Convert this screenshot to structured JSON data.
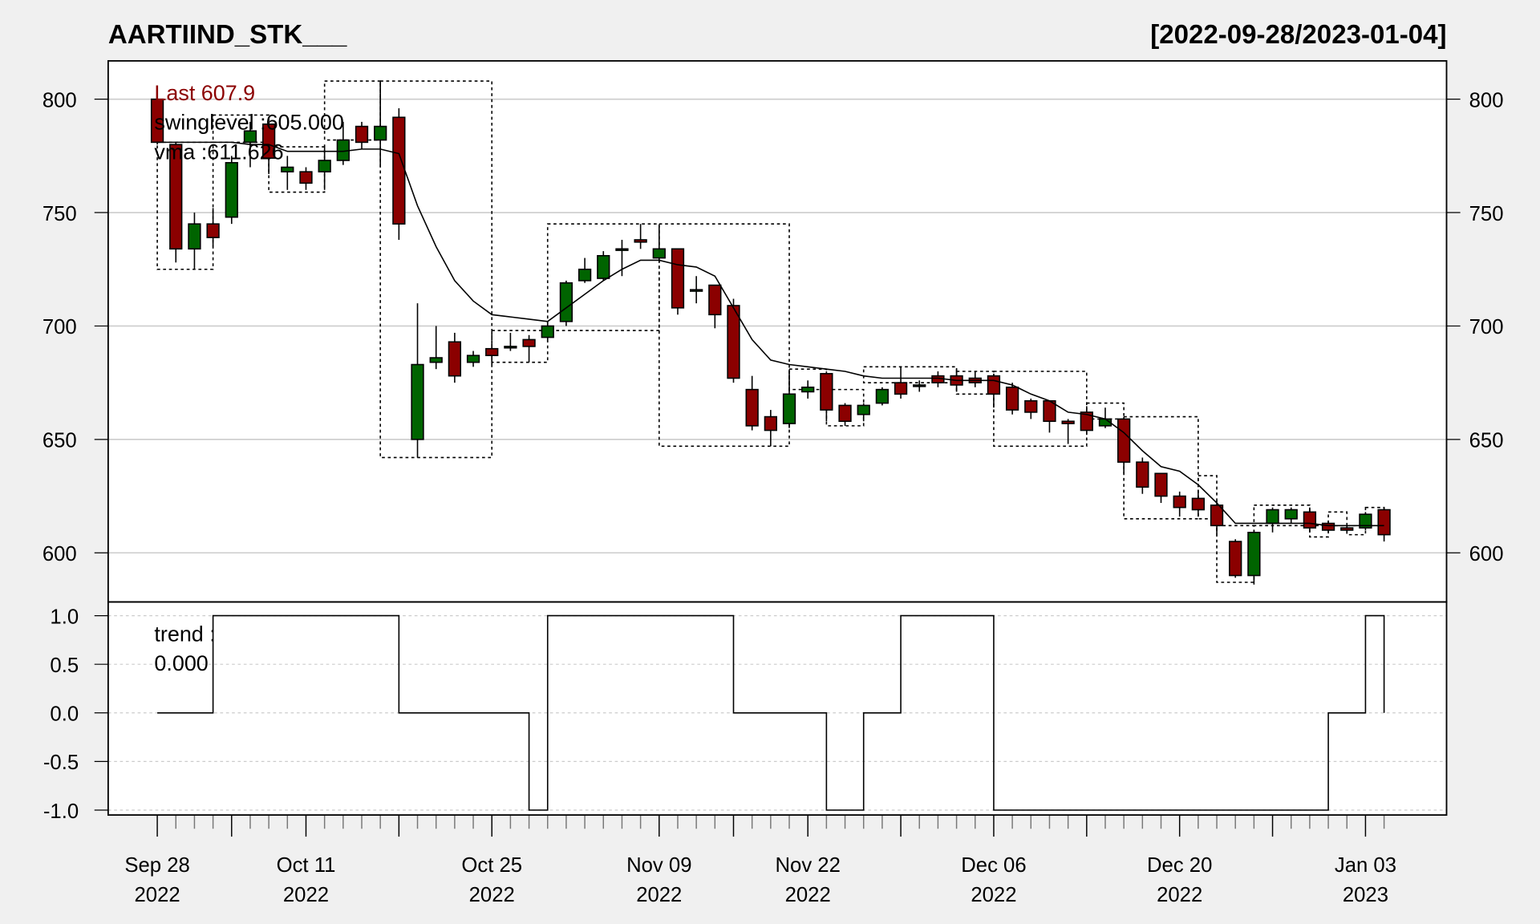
{
  "title": "AARTIIND_STK___",
  "date_range": "[2022-09-28/2023-01-04]",
  "legend": {
    "last": "Last 607.9",
    "swinglevel": "swinglevel :605.000",
    "vma": "vma :611.626",
    "trend_label": "trend :",
    "trend_value": "0.000"
  },
  "colors": {
    "up": "#006400",
    "down": "#8b0000",
    "last_text": "#8b0000",
    "grid": "#cccccc",
    "background": "#f0f0f0"
  },
  "chart_data": [
    {
      "type": "candlestick",
      "panel": "price",
      "ylim": [
        580,
        815
      ],
      "yticks": [
        "600",
        "650",
        "700",
        "750",
        "800"
      ],
      "grid": true,
      "ohlc": [
        [
          800,
          801,
          780,
          781
        ],
        [
          780,
          781,
          728,
          734
        ],
        [
          734,
          750,
          725,
          745
        ],
        [
          745,
          752,
          735,
          739
        ],
        [
          748,
          775,
          745,
          772
        ],
        [
          781,
          790,
          770,
          786
        ],
        [
          789,
          790,
          767,
          774
        ],
        [
          768,
          775,
          760,
          770
        ],
        [
          768,
          770,
          760,
          763
        ],
        [
          768,
          780,
          760,
          773
        ],
        [
          773,
          790,
          771,
          782
        ],
        [
          788,
          790,
          778,
          781
        ],
        [
          782,
          808,
          770,
          788
        ],
        [
          792,
          796,
          738,
          745
        ],
        [
          650,
          710,
          642,
          683
        ],
        [
          684,
          700,
          681,
          686
        ],
        [
          693,
          697,
          675,
          678
        ],
        [
          684,
          689,
          682,
          687
        ],
        [
          690,
          692,
          683,
          687
        ],
        [
          691,
          697,
          689,
          691
        ],
        [
          694,
          696,
          684,
          691
        ],
        [
          695,
          702,
          693,
          700
        ],
        [
          702,
          720,
          700,
          719
        ],
        [
          720,
          730,
          719,
          725
        ],
        [
          721,
          733,
          720,
          731
        ],
        [
          734,
          738,
          722,
          734
        ],
        [
          738,
          745,
          734,
          737
        ],
        [
          730,
          744,
          728,
          734
        ],
        [
          734,
          734,
          705,
          708
        ],
        [
          716,
          722,
          710,
          716
        ],
        [
          718,
          718,
          699,
          705
        ],
        [
          709,
          712,
          675,
          677
        ],
        [
          672,
          678,
          654,
          656
        ],
        [
          660,
          663,
          647,
          654
        ],
        [
          657,
          680,
          655,
          670
        ],
        [
          671,
          676,
          668,
          673
        ],
        [
          679,
          680,
          658,
          663
        ],
        [
          665,
          666,
          656,
          658
        ],
        [
          661,
          666,
          658,
          665
        ],
        [
          666,
          673,
          665,
          672
        ],
        [
          675,
          682,
          668,
          670
        ],
        [
          674,
          676,
          671,
          674
        ],
        [
          678,
          680,
          673,
          675
        ],
        [
          678,
          681,
          671,
          674
        ],
        [
          677,
          680,
          673,
          675
        ],
        [
          678,
          679,
          664,
          670
        ],
        [
          673,
          675,
          661,
          663
        ],
        [
          667,
          668,
          659,
          662
        ],
        [
          667,
          667,
          653,
          658
        ],
        [
          658,
          659,
          648,
          657
        ],
        [
          662,
          664,
          652,
          654
        ],
        [
          656,
          664,
          655,
          659
        ],
        [
          659,
          660,
          635,
          640
        ],
        [
          640,
          642,
          626,
          629
        ],
        [
          635,
          635,
          622,
          625
        ],
        [
          625,
          627,
          616,
          620
        ],
        [
          624,
          627,
          616,
          619
        ],
        [
          621,
          623,
          608,
          612
        ],
        [
          605,
          606,
          589,
          590
        ],
        [
          590,
          610,
          586,
          609
        ],
        [
          613,
          620,
          609,
          619
        ],
        [
          615,
          620,
          613,
          619
        ],
        [
          618,
          620,
          609,
          611
        ],
        [
          613,
          614,
          609,
          610
        ],
        [
          611,
          612,
          609,
          610
        ],
        [
          611,
          618,
          610,
          617
        ],
        [
          619,
          620,
          605,
          608
        ]
      ],
      "vma": [
        781,
        781,
        781,
        781,
        781,
        780,
        780,
        777,
        777,
        777,
        777,
        778,
        778,
        776,
        753,
        735,
        720,
        711,
        705,
        704,
        703,
        702,
        708,
        714,
        720,
        725,
        729,
        729,
        727,
        726,
        722,
        708,
        694,
        685,
        683,
        682,
        681,
        680,
        678,
        677,
        677,
        677,
        677,
        676,
        676,
        676,
        674,
        670,
        667,
        662,
        661,
        659,
        653,
        645,
        638,
        636,
        630,
        622,
        613,
        613,
        613,
        613,
        613,
        612,
        612,
        612,
        612
      ],
      "swing_boxes": [
        [
          0,
          3,
          725,
          781
        ],
        [
          3,
          6,
          781,
          793
        ],
        [
          6,
          9,
          759,
          779
        ],
        [
          9,
          12,
          782,
          808
        ],
        [
          12,
          18,
          642,
          808
        ],
        [
          18,
          21,
          684,
          698
        ],
        [
          21,
          27,
          698,
          745
        ],
        [
          27,
          34,
          647,
          745
        ],
        [
          34,
          36,
          672,
          681
        ],
        [
          36,
          38,
          656,
          672
        ],
        [
          38,
          43,
          675,
          682
        ],
        [
          43,
          45,
          670,
          680
        ],
        [
          45,
          50,
          647,
          680
        ],
        [
          50,
          52,
          659,
          666
        ],
        [
          52,
          56,
          615,
          660
        ],
        [
          56,
          57,
          615,
          634
        ],
        [
          57,
          59,
          587,
          612
        ],
        [
          59,
          62,
          612,
          621
        ],
        [
          62,
          63,
          607,
          612
        ],
        [
          63,
          64,
          612,
          618
        ],
        [
          64,
          65,
          608,
          612
        ],
        [
          65,
          66,
          612,
          620
        ]
      ]
    },
    {
      "type": "line",
      "panel": "trend",
      "ylim": [
        -1.05,
        1.05
      ],
      "yticks": [
        "-1.0",
        "-0.5",
        "0.0",
        "0.5",
        "1.0"
      ],
      "grid": true,
      "values": [
        0,
        0,
        0,
        1,
        1,
        1,
        1,
        1,
        1,
        1,
        1,
        1,
        1,
        0,
        0,
        0,
        0,
        0,
        0,
        0,
        -1,
        1,
        1,
        1,
        1,
        1,
        1,
        1,
        1,
        1,
        1,
        0,
        0,
        0,
        0,
        0,
        -1,
        -1,
        0,
        0,
        1,
        1,
        1,
        1,
        1,
        -1,
        -1,
        -1,
        -1,
        -1,
        -1,
        -1,
        -1,
        -1,
        -1,
        -1,
        -1,
        -1,
        -1,
        -1,
        -1,
        -1,
        -1,
        0,
        0,
        1,
        0
      ]
    }
  ],
  "x_axis": {
    "ticks": [
      {
        "index": 0,
        "line1": "Sep 28",
        "line2": "2022"
      },
      {
        "index": 8,
        "line1": "Oct 11",
        "line2": "2022"
      },
      {
        "index": 18,
        "line1": "Oct 25",
        "line2": "2022"
      },
      {
        "index": 27,
        "line1": "Nov 09",
        "line2": "2022"
      },
      {
        "index": 35,
        "line1": "Nov 22",
        "line2": "2022"
      },
      {
        "index": 45,
        "line1": "Dec 06",
        "line2": "2022"
      },
      {
        "index": 55,
        "line1": "Dec 20",
        "line2": "2022"
      },
      {
        "index": 65,
        "line1": "Jan 03",
        "line2": "2023"
      }
    ]
  }
}
